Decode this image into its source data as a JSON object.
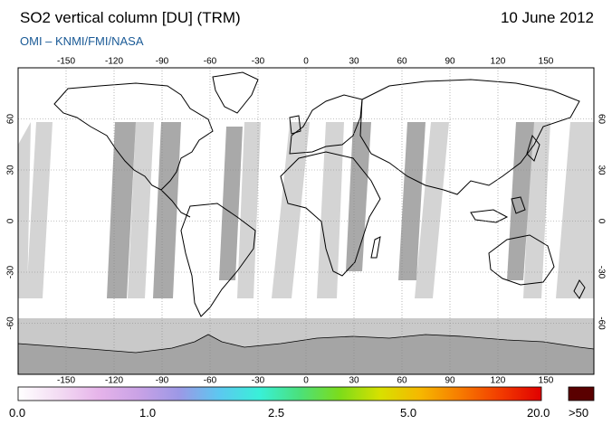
{
  "header": {
    "title": "SO2 vertical column [DU] (TRM)",
    "date": "10 June 2012",
    "credit": "OMI  –  KNMI/FMI/NASA"
  },
  "map": {
    "projection": "equirectangular",
    "lon_range": [
      -180,
      180
    ],
    "lat_range": [
      -90,
      90
    ],
    "lon_ticks": [
      -150,
      -120,
      -90,
      -60,
      -30,
      0,
      30,
      60,
      90,
      120,
      150
    ],
    "lat_ticks": [
      60,
      30,
      0,
      -30,
      -60
    ],
    "lon_tick_labels": [
      "-150",
      "-120",
      "-90",
      "-60",
      "-30",
      "0",
      "30",
      "60",
      "90",
      "120",
      "150"
    ],
    "lat_tick_labels": [
      "60",
      "30",
      "0",
      "-30",
      "-60"
    ],
    "grid": "dotted",
    "colors": {
      "land_outline": "#000000",
      "orbit_light": "#d4d4d4",
      "orbit_dark": "#a9a9a9",
      "south_cap": "#c9c9c9",
      "antarctica": "#a5a5a5"
    }
  },
  "colorbar": {
    "labels": [
      "0.0",
      "1.0",
      "2.5",
      "5.0",
      "20.0"
    ],
    "overflow_label": ">50",
    "overflow_color": "#5a0000",
    "stops": [
      "#ffffff",
      "#f3dcf3",
      "#e6b4ea",
      "#c9a2e6",
      "#9c98e6",
      "#5cc8f0",
      "#39f0d8",
      "#4be07a",
      "#7ddc1a",
      "#d8e000",
      "#f6b700",
      "#f77a00",
      "#f23a00",
      "#e00000"
    ]
  }
}
